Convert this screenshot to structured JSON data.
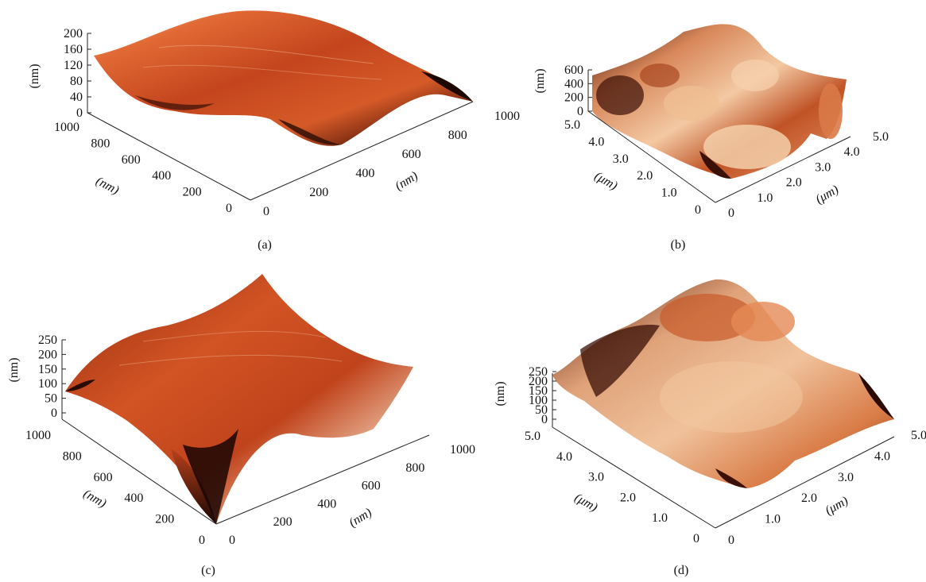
{
  "panels": [
    {
      "id": "a",
      "caption": "(a)",
      "z_label": "(nm)",
      "z_ticks": [
        "0",
        "40",
        "80",
        "120",
        "160",
        "200"
      ],
      "left_axis_label": "(nm)",
      "left_ticks": [
        "0",
        "200",
        "400",
        "600",
        "800",
        "1000"
      ],
      "right_axis_label": "(nm)",
      "right_ticks": [
        "0",
        "200",
        "400",
        "600",
        "800",
        "1000"
      ]
    },
    {
      "id": "b",
      "caption": "(b)",
      "z_label": "(nm)",
      "z_ticks": [
        "0",
        "200",
        "400",
        "600"
      ],
      "left_axis_label": "(μm)",
      "left_ticks": [
        "0",
        "1.0",
        "2.0",
        "3.0",
        "4.0",
        "5.0"
      ],
      "right_axis_label": "(μm)",
      "right_ticks": [
        "0",
        "1.0",
        "2.0",
        "3.0",
        "4.0",
        "5.0"
      ]
    },
    {
      "id": "c",
      "caption": "(c)",
      "z_label": "(nm)",
      "z_ticks": [
        "0",
        "50",
        "100",
        "150",
        "200",
        "250"
      ],
      "left_axis_label": "(nm)",
      "left_ticks": [
        "0",
        "200",
        "400",
        "600",
        "800",
        "1000"
      ],
      "right_axis_label": "(nm)",
      "right_ticks": [
        "0",
        "200",
        "400",
        "600",
        "800",
        "1000"
      ]
    },
    {
      "id": "d",
      "caption": "(d)",
      "z_label": "(nm)",
      "z_ticks": [
        "0",
        "50",
        "100",
        "150",
        "200",
        "250"
      ],
      "left_axis_label": "(μm)",
      "left_ticks": [
        "0",
        "1.0",
        "2.0",
        "3.0",
        "4.0",
        "5.0"
      ],
      "right_axis_label": "(μm)",
      "right_ticks": [
        "0",
        "1.0",
        "2.0",
        "3.0",
        "4.0",
        "5.0"
      ]
    }
  ],
  "colors": {
    "surface_dark": "#2a0c05",
    "surface_mid": "#c4451d",
    "surface_orange": "#e0652e",
    "surface_light": "#f8dcc0",
    "axis": "#222222"
  }
}
